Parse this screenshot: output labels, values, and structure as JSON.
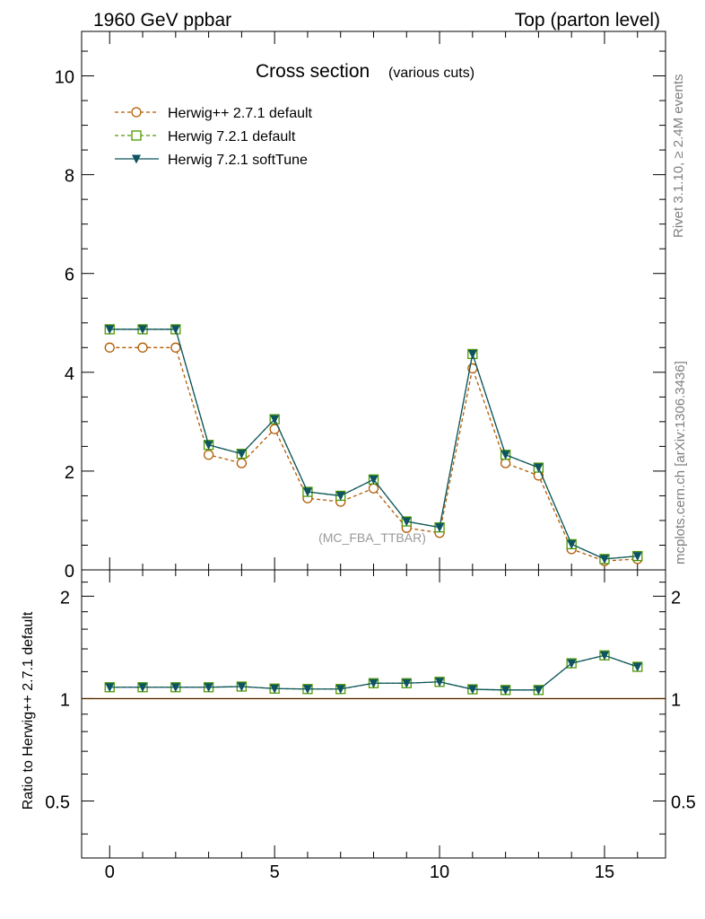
{
  "header": {
    "left_label": "1960 GeV ppbar",
    "right_label": "Top (parton level)"
  },
  "side": {
    "rivet": "Rivet 3.1.10, ≥ 2.4M events",
    "mcplots": "mcplots.cern.ch [arXiv:1306.3436]"
  },
  "chart_data": [
    {
      "type": "line",
      "title": "Cross section",
      "subtitle": "(various cuts)",
      "watermark": "(MC_FBA_TTBAR)",
      "x": [
        0,
        1,
        2,
        3,
        4,
        5,
        6,
        7,
        8,
        9,
        10,
        11,
        12,
        13,
        14,
        15,
        16
      ],
      "xlim": [
        -0.85,
        16.85
      ],
      "ylim": [
        0,
        10.9
      ],
      "yticks": [
        0,
        2,
        4,
        6,
        8,
        10
      ],
      "xticks": [
        0,
        5,
        10,
        15
      ],
      "legend_position": "top-left",
      "series": [
        {
          "name": "Herwig++ 2.7.1 default",
          "color": "#b25a00",
          "marker": "open-circle",
          "style": "dashed",
          "values": [
            4.5,
            4.5,
            4.5,
            2.33,
            2.16,
            2.85,
            1.45,
            1.38,
            1.65,
            0.85,
            0.75,
            4.08,
            2.16,
            1.91,
            0.42,
            0.18,
            0.22
          ]
        },
        {
          "name": "Herwig 7.2.1 default",
          "color": "#4d9900",
          "marker": "open-square",
          "style": "dashed",
          "values": [
            4.87,
            4.87,
            4.87,
            2.53,
            2.35,
            3.05,
            1.58,
            1.5,
            1.83,
            0.98,
            0.86,
            4.37,
            2.33,
            2.07,
            0.52,
            0.22,
            0.28
          ]
        },
        {
          "name": "Herwig 7.2.1 softTune",
          "color": "#0d5460",
          "marker": "filled-triangle-down",
          "style": "solid",
          "values": [
            4.87,
            4.87,
            4.87,
            2.53,
            2.35,
            3.05,
            1.58,
            1.5,
            1.83,
            0.98,
            0.86,
            4.37,
            2.33,
            2.07,
            0.52,
            0.22,
            0.28
          ]
        }
      ]
    },
    {
      "type": "line",
      "ylabel": "Ratio to Herwig++ 2.7.1 default",
      "x": [
        0,
        1,
        2,
        3,
        4,
        5,
        6,
        7,
        8,
        9,
        10,
        11,
        12,
        13,
        14,
        15,
        16
      ],
      "xlim": [
        -0.85,
        16.85
      ],
      "ylim": [
        0.34,
        2.39
      ],
      "ytick_labels": [
        "0.5",
        "1",
        "2"
      ],
      "xticks": [
        0,
        5,
        10,
        15
      ],
      "series": [
        {
          "name": "Herwig++ 2.7.1 default",
          "color": "#b25a00",
          "style": "solid",
          "values": [
            1,
            1,
            1,
            1,
            1,
            1,
            1,
            1,
            1,
            1,
            1,
            1,
            1,
            1,
            1,
            1,
            1
          ]
        },
        {
          "name": "Herwig 7.2.1 default",
          "color": "#4d9900",
          "marker": "open-square",
          "style": "dashed",
          "values": [
            1.08,
            1.08,
            1.08,
            1.08,
            1.085,
            1.07,
            1.067,
            1.067,
            1.11,
            1.11,
            1.12,
            1.065,
            1.06,
            1.06,
            1.27,
            1.34,
            1.24
          ]
        },
        {
          "name": "Herwig 7.2.1 softTune",
          "color": "#0d5460",
          "marker": "filled-triangle-down",
          "style": "solid",
          "values": [
            1.08,
            1.08,
            1.08,
            1.08,
            1.085,
            1.07,
            1.067,
            1.067,
            1.11,
            1.11,
            1.12,
            1.065,
            1.06,
            1.06,
            1.27,
            1.34,
            1.24
          ]
        }
      ]
    }
  ]
}
